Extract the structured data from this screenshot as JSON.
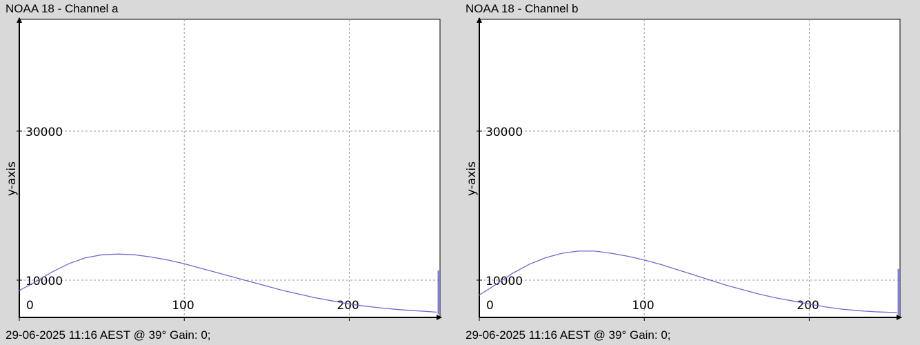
{
  "panels": [
    {
      "title": "NOAA 18 - Channel a",
      "footer": "29-06-2025 11:16 AEST @ 39° Gain: 0;",
      "ylabel": "y-axis"
    },
    {
      "title": "NOAA 18 - Channel b",
      "footer": "29-06-2025 11:16 AEST @ 39° Gain: 0;",
      "ylabel": "y-axis"
    }
  ],
  "colors": {
    "background": "#d9d9d9",
    "plot_area": "#ffffff",
    "series": "#6b6bd0",
    "grid": "#9a9a9a",
    "axis": "#000000"
  },
  "chart_data": [
    {
      "type": "line",
      "title": "NOAA 18 - Channel a",
      "xlabel": "",
      "ylabel": "y-axis",
      "xlim": [
        0,
        255
      ],
      "ylim": [
        5000,
        45000
      ],
      "x_ticks": [
        0,
        100,
        200
      ],
      "y_ticks": [
        10000,
        30000
      ],
      "grid": true,
      "series": [
        {
          "x": [
            0,
            10,
            20,
            30,
            40,
            50,
            60,
            70,
            80,
            90,
            100,
            110,
            120,
            130,
            140,
            150,
            160,
            170,
            180,
            190,
            200,
            210,
            220,
            230,
            240,
            253
          ],
          "y": [
            8600,
            9800,
            11100,
            12200,
            13000,
            13400,
            13500,
            13400,
            13100,
            12700,
            12200,
            11600,
            11000,
            10400,
            9800,
            9200,
            8600,
            8100,
            7600,
            7200,
            6800,
            6500,
            6250,
            6050,
            5900,
            5700
          ]
        }
      ],
      "end_spike": {
        "x": 254,
        "y_low": 5400,
        "y_high": 11300
      }
    },
    {
      "type": "line",
      "title": "NOAA 18 - Channel b",
      "xlabel": "",
      "ylabel": "y-axis",
      "xlim": [
        0,
        255
      ],
      "ylim": [
        5000,
        45000
      ],
      "x_ticks": [
        0,
        100,
        200
      ],
      "y_ticks": [
        10000,
        30000
      ],
      "grid": true,
      "series": [
        {
          "x": [
            0,
            10,
            20,
            30,
            40,
            50,
            60,
            70,
            80,
            90,
            100,
            110,
            120,
            130,
            140,
            150,
            160,
            170,
            180,
            190,
            200,
            210,
            220,
            230,
            240,
            253
          ],
          "y": [
            8000,
            9400,
            10900,
            12100,
            13000,
            13600,
            13900,
            13900,
            13600,
            13200,
            12700,
            12100,
            11400,
            10700,
            10000,
            9300,
            8700,
            8100,
            7600,
            7200,
            6800,
            6400,
            6100,
            5900,
            5750,
            5650
          ]
        }
      ],
      "end_spike": {
        "x": 254,
        "y_low": 5300,
        "y_high": 11500
      }
    }
  ]
}
